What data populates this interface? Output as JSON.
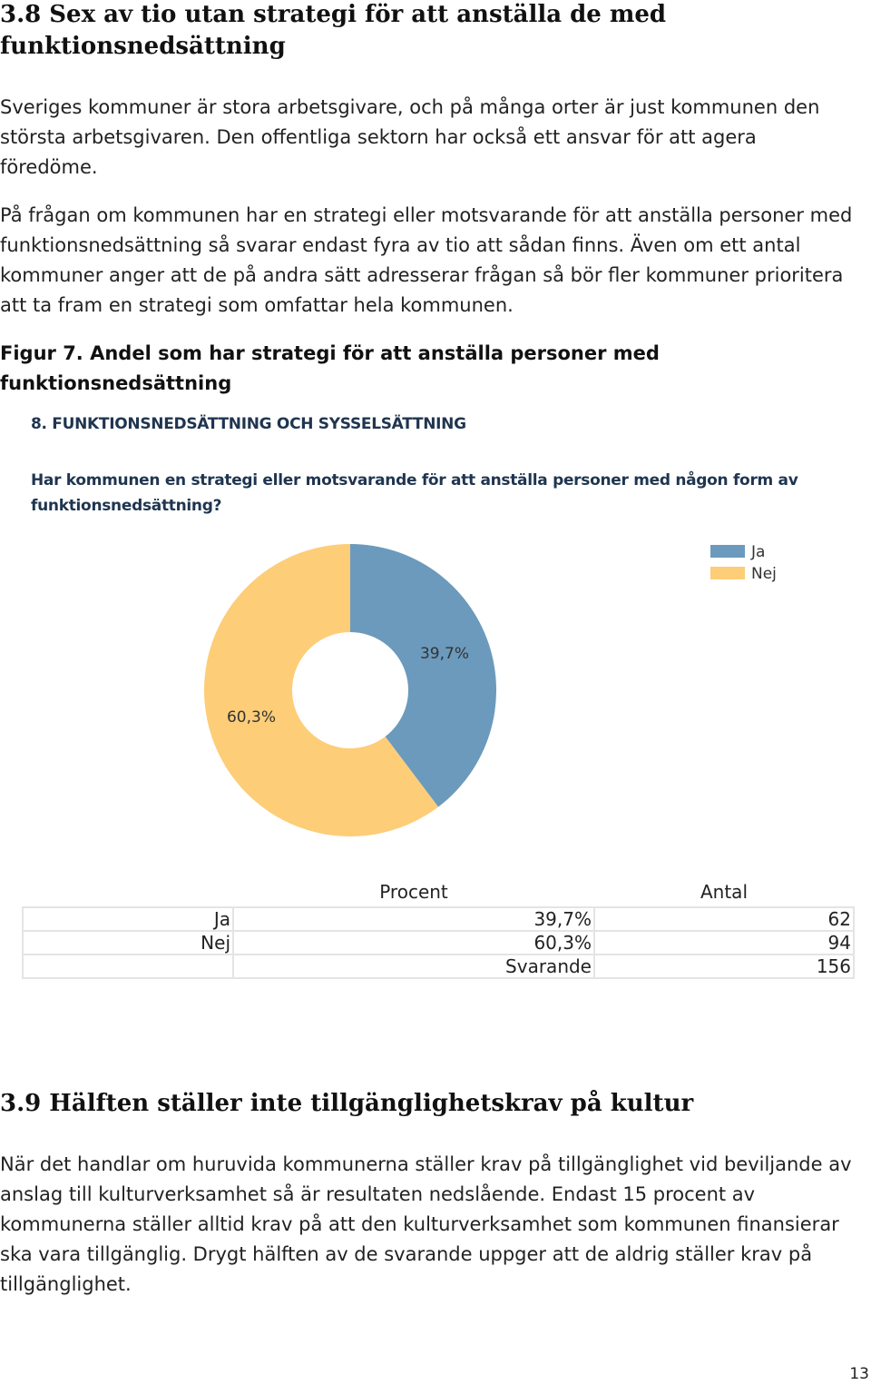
{
  "section_38": {
    "heading": "3.8 Sex av tio utan strategi för att anställa de med funktionsnedsättning",
    "paragraph_1": "Sveriges kommuner är stora arbetsgivare, och på många orter är just kommunen den största arbetsgivaren. Den offentliga sektorn har också ett ansvar för att agera föredöme.",
    "paragraph_2": "På frågan om kommunen har en strategi eller motsvarande för att anställa personer med funktionsnedsättning så svarar endast fyra av tio att sådan finns. Även om ett antal kommuner anger att de på andra sätt adresserar frågan så bör fler kommuner prioritera att ta fram en strategi som omfattar hela kommunen.",
    "figure_caption": "Figur 7. Andel som har strategi för att anställa personer med funktionsnedsättning"
  },
  "survey": {
    "section_title": "8. FUNKTIONSNEDSÄTTNING OCH SYSSELSÄTTNING",
    "question": "Har kommunen en strategi eller motsvarande för att anställa personer med någon form av funktionsnedsättning?"
  },
  "chart_data": {
    "type": "pie",
    "donut": true,
    "series": [
      {
        "name": "Ja",
        "value": 39.7,
        "label": "39,7%",
        "color": "#6b9abc"
      },
      {
        "name": "Nej",
        "value": 60.3,
        "label": "60,3%",
        "color": "#fdcd78"
      }
    ],
    "legend_position": "top-right"
  },
  "table": {
    "headers": {
      "percent": "Procent",
      "count": "Antal"
    },
    "rows": [
      {
        "label": "Ja",
        "percent": "39,7%",
        "count": "62"
      },
      {
        "label": "Nej",
        "percent": "60,3%",
        "count": "94"
      },
      {
        "label": "",
        "percent": "Svarande",
        "count": "156"
      }
    ]
  },
  "section_39": {
    "heading": "3.9 Hälften ställer inte tillgänglighetskrav på kultur",
    "paragraph": "När det handlar om huruvida kommunerna ställer krav på tillgänglighet vid beviljande av anslag till kulturverksamhet så är resultaten nedslående. Endast 15 procent av kommunerna ställer alltid krav på att den kulturverksamhet som kommunen finansierar ska vara tillgänglig. Drygt hälften av de svarande uppger att de aldrig ställer krav på tillgänglighet."
  },
  "page_number": "13"
}
